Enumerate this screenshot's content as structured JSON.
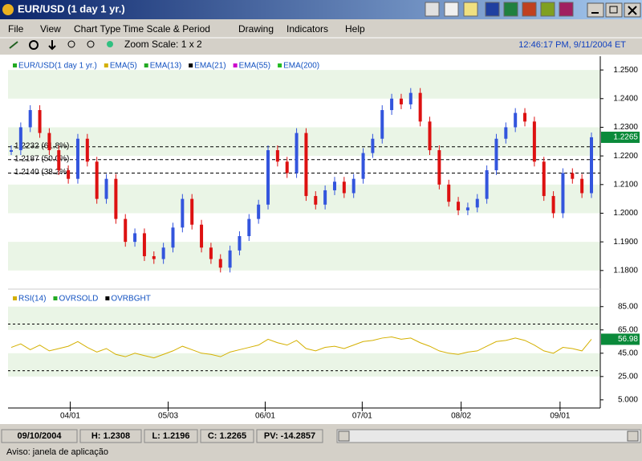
{
  "window": {
    "title": "EUR/USD (1 day  1 yr.)"
  },
  "menu": [
    "File",
    "View",
    "Chart Type",
    "Time Scale & Period",
    "Drawing",
    "Indicators",
    "Help"
  ],
  "toolbar": {
    "zoom": "Zoom Scale: 1 x 2",
    "clock": "12:46:17 PM, 9/11/2004 ET"
  },
  "chart_data": [
    {
      "type": "candlestick",
      "legend": [
        {
          "name": "EUR/USD(1 day  1 yr.)",
          "color": "#22aa22"
        },
        {
          "name": "EMA(5)",
          "color": "#d4b000"
        },
        {
          "name": "EMA(13)",
          "color": "#22aa22"
        },
        {
          "name": "EMA(21)",
          "color": "#000000"
        },
        {
          "name": "EMA(55)",
          "color": "#cc00cc"
        },
        {
          "name": "EMA(200)",
          "color": "#22bb22"
        }
      ],
      "up_color": "#3355dd",
      "down_color": "#dd1111",
      "closes": [
        1.222,
        1.23,
        1.236,
        1.228,
        1.222,
        1.215,
        1.212,
        1.226,
        1.218,
        1.205,
        1.212,
        1.198,
        1.19,
        1.193,
        1.185,
        1.184,
        1.188,
        1.195,
        1.205,
        1.196,
        1.188,
        1.184,
        1.181,
        1.187,
        1.192,
        1.198,
        1.203,
        1.222,
        1.218,
        1.214,
        1.228,
        1.206,
        1.203,
        1.208,
        1.211,
        1.207,
        1.212,
        1.221,
        1.226,
        1.236,
        1.24,
        1.238,
        1.242,
        1.232,
        1.222,
        1.21,
        1.204,
        1.201,
        1.202,
        1.205,
        1.215,
        1.226,
        1.23,
        1.235,
        1.232,
        1.218,
        1.206,
        1.2,
        1.214,
        1.212,
        1.207,
        1.2265
      ],
      "xlim": [
        0,
        61
      ],
      "xticks": [
        {
          "value": 6.2,
          "label": "04/01"
        },
        {
          "value": 16.5,
          "label": "05/03"
        },
        {
          "value": 26.7,
          "label": "06/01"
        },
        {
          "value": 36.9,
          "label": "07/01"
        },
        {
          "value": 47.3,
          "label": "08/02"
        },
        {
          "value": 57.7,
          "label": "09/01"
        }
      ],
      "ylim": [
        1.1735,
        1.2548
      ],
      "yticks": [
        {
          "value": 1.25,
          "label": "1.2500"
        },
        {
          "value": 1.24,
          "label": "1.2400"
        },
        {
          "value": 1.23,
          "label": "1.2300"
        },
        {
          "value": 1.22,
          "label": "1.2200"
        },
        {
          "value": 1.21,
          "label": "1.2100"
        },
        {
          "value": 1.2,
          "label": "1.2000"
        },
        {
          "value": 1.19,
          "label": "1.1900"
        },
        {
          "value": 1.18,
          "label": "1.1800"
        }
      ],
      "fib": [
        {
          "value": 1.2232,
          "label": "1.2232 (61.8%)"
        },
        {
          "value": 1.2187,
          "label": "1.2187 (50.0%)"
        },
        {
          "value": 1.214,
          "label": "1.2140 (38.2%)"
        }
      ],
      "last": 1.2265
    },
    {
      "type": "line",
      "legend": [
        {
          "name": "RSI(14)",
          "color": "#d4b000"
        },
        {
          "name": "OVRSOLD",
          "color": "#22aa22"
        },
        {
          "name": "OVRBGHT",
          "color": "#000000"
        }
      ],
      "color": "#d4b000",
      "values": [
        50,
        53,
        48,
        52,
        47,
        49,
        51,
        55,
        50,
        46,
        49,
        44,
        42,
        45,
        43,
        41,
        44,
        47,
        51,
        48,
        45,
        44,
        42,
        46,
        48,
        50,
        52,
        57,
        54,
        52,
        56,
        49,
        47,
        50,
        51,
        49,
        52,
        55,
        56,
        58,
        59,
        57,
        58,
        54,
        51,
        47,
        45,
        44,
        46,
        47,
        51,
        55,
        56,
        58,
        56,
        52,
        47,
        45,
        50,
        49,
        47,
        56.98
      ],
      "ylim": [
        -2,
        100
      ],
      "yticks": [
        {
          "value": 85,
          "label": "85.00"
        },
        {
          "value": 65,
          "label": "65.00"
        },
        {
          "value": 45,
          "label": "45.00"
        },
        {
          "value": 25,
          "label": "25.00"
        },
        {
          "value": 5,
          "label": "5.000"
        }
      ],
      "levels": [
        70,
        30
      ],
      "last": 56.98
    }
  ],
  "status": {
    "date": "09/10/2004",
    "high": "H: 1.2308",
    "low": "L: 1.2196",
    "close": "C: 1.2265",
    "pv": "PV: -14.2857"
  },
  "footer": "Aviso: janela de aplicação"
}
